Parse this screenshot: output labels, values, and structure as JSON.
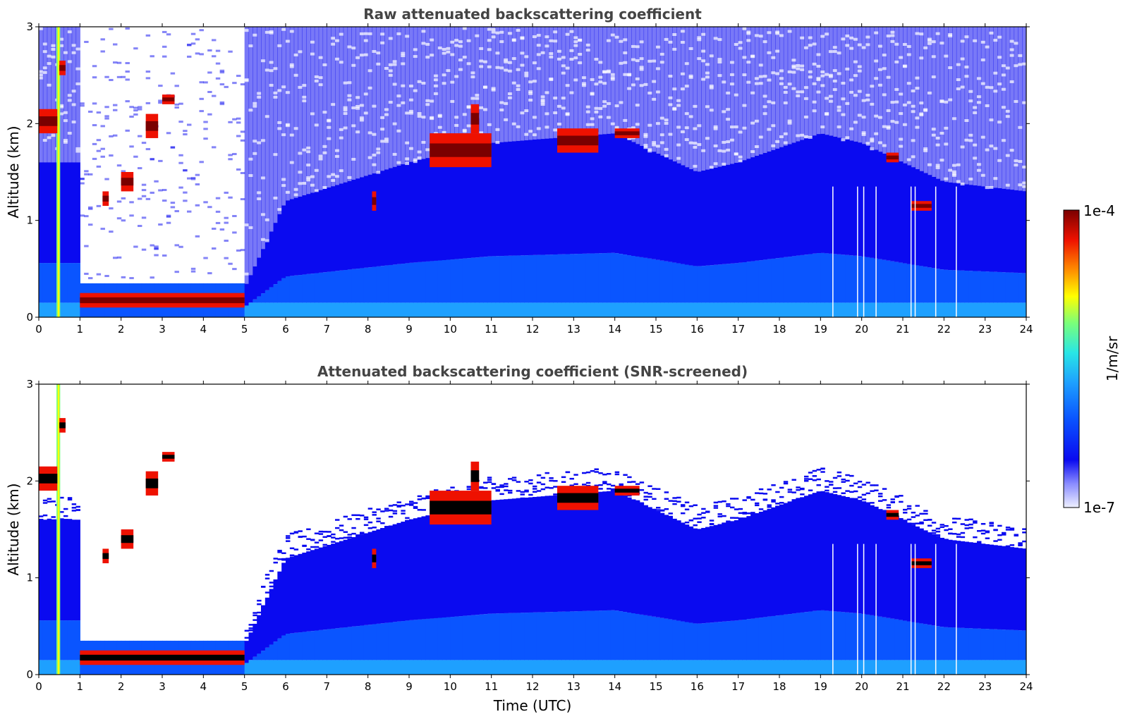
{
  "colors": {
    "background": "#ffffff",
    "colormap": [
      "#eef0ff",
      "#0a0af0",
      "#0a55ff",
      "#1ea0ff",
      "#28e6e6",
      "#7aff7a",
      "#ffff00",
      "#ff8c00",
      "#ee1100",
      "#7a0000"
    ],
    "screened_high": "#000000"
  },
  "chart_data": [
    {
      "type": "heatmap",
      "title": "Raw attenuated backscattering coefficient",
      "xlabel": "",
      "ylabel": "Altitude (km)",
      "xlim": [
        0,
        24
      ],
      "ylim": [
        0,
        3
      ],
      "xticks": [
        "0",
        "1",
        "2",
        "3",
        "4",
        "5",
        "6",
        "7",
        "8",
        "9",
        "10",
        "11",
        "12",
        "13",
        "14",
        "15",
        "16",
        "17",
        "18",
        "19",
        "20",
        "21",
        "22",
        "23",
        "24"
      ],
      "yticks": [
        "0",
        "1",
        "2",
        "3"
      ],
      "colorscale": "jet",
      "log_color_range": [
        "1e-7",
        "1e-4"
      ],
      "features": {
        "boundary_layer_top_km": [
          {
            "t": 0,
            "z": 1.6
          },
          {
            "t": 1,
            "z": 1.6
          },
          {
            "t": 5,
            "z": 0.3
          },
          {
            "t": 6,
            "z": 1.2
          },
          {
            "t": 9,
            "z": 1.6
          },
          {
            "t": 11,
            "z": 1.8
          },
          {
            "t": 14,
            "z": 1.9
          },
          {
            "t": 16,
            "z": 1.5
          },
          {
            "t": 17,
            "z": 1.6
          },
          {
            "t": 19,
            "z": 1.9
          },
          {
            "t": 20,
            "z": 1.8
          },
          {
            "t": 22,
            "z": 1.4
          },
          {
            "t": 24,
            "z": 1.3
          }
        ],
        "clouds": [
          {
            "t0": 0.0,
            "t1": 0.45,
            "z0": 1.9,
            "z1": 2.15
          },
          {
            "t0": 0.5,
            "t1": 0.65,
            "z0": 2.5,
            "z1": 2.65
          },
          {
            "t0": 1.0,
            "t1": 5.0,
            "z0": 0.1,
            "z1": 0.25
          },
          {
            "t0": 1.55,
            "t1": 1.7,
            "z0": 1.15,
            "z1": 1.3
          },
          {
            "t0": 2.0,
            "t1": 2.3,
            "z0": 1.3,
            "z1": 1.5
          },
          {
            "t0": 2.6,
            "t1": 2.9,
            "z0": 1.85,
            "z1": 2.1
          },
          {
            "t0": 3.0,
            "t1": 3.3,
            "z0": 2.2,
            "z1": 2.3
          },
          {
            "t0": 8.1,
            "t1": 8.2,
            "z0": 1.1,
            "z1": 1.3
          },
          {
            "t0": 9.5,
            "t1": 11.0,
            "z0": 1.55,
            "z1": 1.9
          },
          {
            "t0": 10.5,
            "t1": 10.7,
            "z0": 1.9,
            "z1": 2.2
          },
          {
            "t0": 12.6,
            "t1": 13.6,
            "z0": 1.7,
            "z1": 1.95
          },
          {
            "t0": 14.0,
            "t1": 14.6,
            "z0": 1.85,
            "z1": 1.95
          },
          {
            "t0": 20.6,
            "t1": 20.9,
            "z0": 1.6,
            "z1": 1.7
          },
          {
            "t0": 21.2,
            "t1": 21.7,
            "z0": 1.1,
            "z1": 1.2
          }
        ]
      }
    },
    {
      "type": "heatmap",
      "title": "Attenuated backscattering coefficient (SNR-screened)",
      "xlabel": "Time (UTC)",
      "ylabel": "Altitude (km)",
      "xlim": [
        0,
        24
      ],
      "ylim": [
        0,
        3
      ],
      "xticks": [
        "0",
        "1",
        "2",
        "3",
        "4",
        "5",
        "6",
        "7",
        "8",
        "9",
        "10",
        "11",
        "12",
        "13",
        "14",
        "15",
        "16",
        "17",
        "18",
        "19",
        "20",
        "21",
        "22",
        "23",
        "24"
      ],
      "yticks": [
        "0",
        "1",
        "2",
        "3"
      ],
      "colorscale": "jet",
      "log_color_range": [
        "1e-7",
        "1e-4"
      ]
    }
  ],
  "colorbar": {
    "label": "1/m/sr",
    "top_label": "1e-4",
    "bottom_label": "1e-7"
  }
}
